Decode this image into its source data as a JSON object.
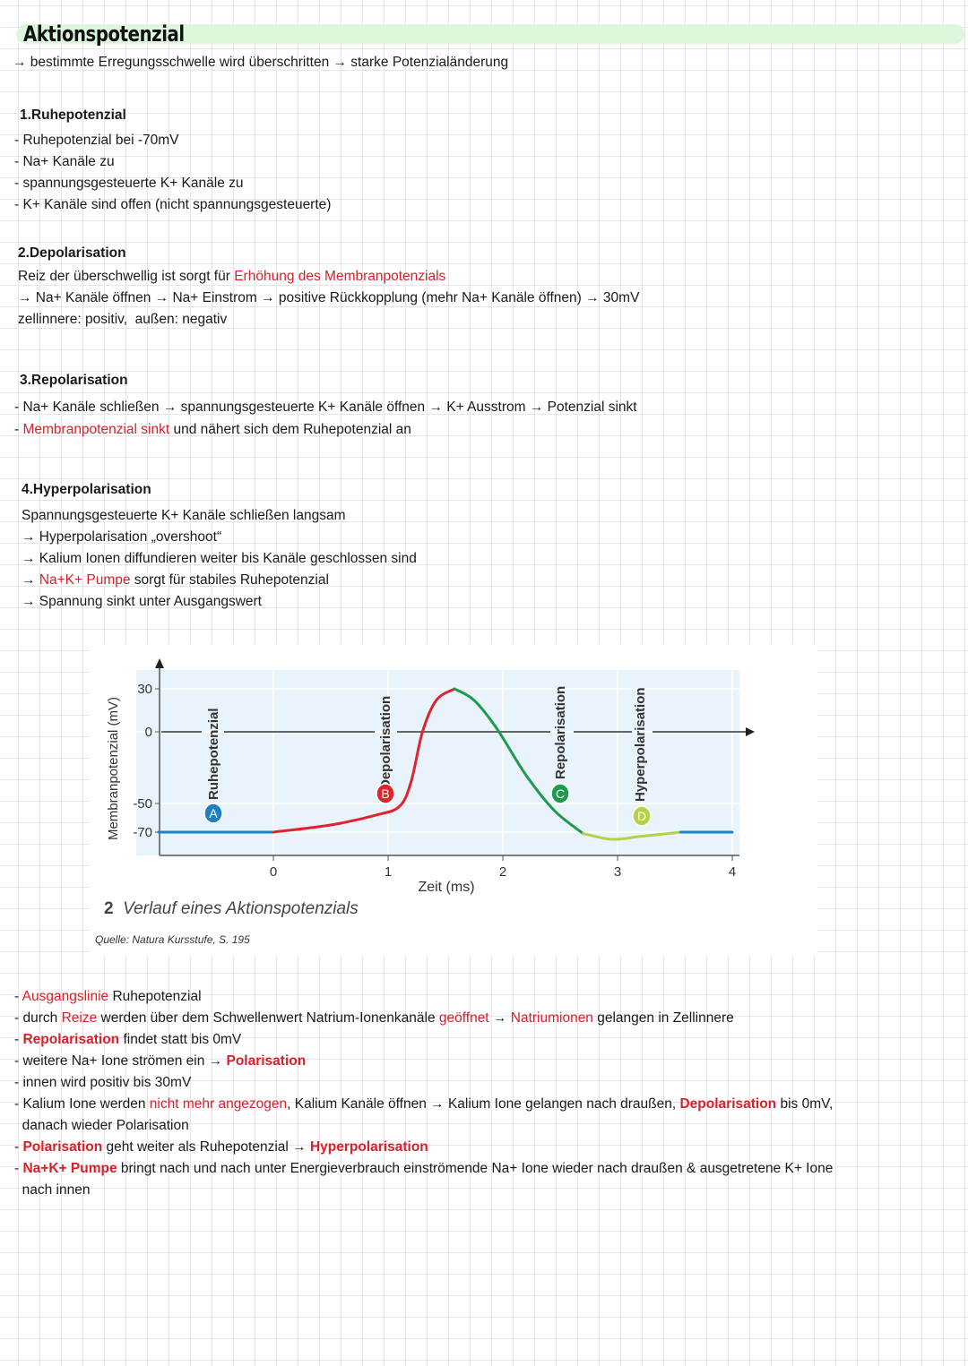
{
  "title": "Aktionspotenzial",
  "intro": [
    {
      "t": "→ bestimmte Erregungsschwelle wird überschritten → starke Potenzialänderung"
    }
  ],
  "sections": [
    {
      "heading": "1.Ruhepotenzial",
      "lines": [
        [
          {
            "t": "- Ruhepotenzial bei -70mV"
          }
        ],
        [
          {
            "t": "- Na+ Kanäle zu"
          }
        ],
        [
          {
            "t": "- spannungsgesteuerte K+ Kanäle zu"
          }
        ],
        [
          {
            "t": "- K+ Kanäle sind offen (nicht spannungsgesteuerte)"
          }
        ]
      ]
    },
    {
      "heading": "2.Depolarisation",
      "lines": [
        [
          {
            "t": "Reiz der überschwellig ist sorgt für "
          },
          {
            "t": "Erhöhung des Membranpotenzials",
            "c": "red"
          }
        ],
        [
          {
            "t": "→ Na+ Kanäle öffnen → Na+ Einstrom → positive Rückkopplung (mehr Na+ Kanäle öffnen) → 30mV"
          }
        ],
        [
          {
            "t": "zellinnere: positiv,  außen: negativ"
          }
        ]
      ]
    },
    {
      "heading": "3.Repolarisation",
      "lines": [
        [
          {
            "t": "- Na+ Kanäle schließen → spannungsgesteuerte K+ Kanäle öffnen → K+ Ausstrom → Potenzial sinkt"
          }
        ],
        [
          {
            "t": "- "
          },
          {
            "t": "Membranpotenzial sinkt",
            "c": "red"
          },
          {
            "t": " und nähert sich dem Ruhepotenzial an"
          }
        ]
      ]
    },
    {
      "heading": "4.Hyperpolarisation",
      "lines": [
        [
          {
            "t": "Spannungsgesteuerte K+ Kanäle schließen langsam"
          }
        ],
        [
          {
            "t": "→ Hyperpolarisation „overshoot“"
          }
        ],
        [
          {
            "t": "→ Kalium Ionen diffundieren weiter bis Kanäle geschlossen sind"
          }
        ],
        [
          {
            "t": "→ "
          },
          {
            "t": "Na+K+ Pumpe",
            "c": "red"
          },
          {
            "t": " sorgt für stabiles Ruhepotenzial"
          }
        ],
        [
          {
            "t": "→ Spannung sinkt unter Ausgangswert"
          }
        ]
      ]
    }
  ],
  "summary": [
    [
      {
        "t": "- "
      },
      {
        "t": "Ausgangslinie",
        "c": "red"
      },
      {
        "t": " Ruhepotenzial"
      }
    ],
    [
      {
        "t": "- durch "
      },
      {
        "t": "Reize",
        "c": "red"
      },
      {
        "t": " werden über dem Schwellenwert Natrium-Ionenkanäle "
      },
      {
        "t": "geöffnet",
        "c": "red"
      },
      {
        "t": " → "
      },
      {
        "t": "Natriumionen",
        "c": "red"
      },
      {
        "t": " gelangen in Zellinnere"
      }
    ],
    [
      {
        "t": "- "
      },
      {
        "t": "Repolarisation",
        "c": "bred"
      },
      {
        "t": " findet statt bis 0mV"
      }
    ],
    [
      {
        "t": "- weitere Na+ Ione strömen ein → "
      },
      {
        "t": "Polarisation",
        "c": "bred"
      }
    ],
    [
      {
        "t": "- innen wird positiv bis 30mV"
      }
    ],
    [
      {
        "t": "- Kalium Ione werden "
      },
      {
        "t": "nicht mehr angezogen",
        "c": "red"
      },
      {
        "t": ", Kalium Kanäle öffnen → Kalium Ione gelangen nach draußen, "
      },
      {
        "t": "Depolarisation",
        "c": "bred"
      },
      {
        "t": " bis 0mV,"
      }
    ],
    [
      {
        "t": "  danach wieder Polarisation"
      }
    ],
    [
      {
        "t": "- "
      },
      {
        "t": "Polarisation",
        "c": "bred"
      },
      {
        "t": " geht weiter als Ruhepotenzial → "
      },
      {
        "t": "Hyperpolarisation",
        "c": "bred"
      }
    ],
    [
      {
        "t": "- "
      },
      {
        "t": "Na+K+ Pumpe",
        "c": "bred"
      },
      {
        "t": " bringt nach und nach unter Energieverbrauch einströmende Na+ Ione wieder nach draußen & ausgetretene K+ Ione"
      }
    ],
    [
      {
        "t": "  nach innen"
      }
    ]
  ],
  "colors": {
    "red": "#d9202a",
    "title_band": "#dcf7dc",
    "rest": "#1f7fc0",
    "depol": "#e0242e",
    "repol": "#1f9a4a",
    "hyper": "#b5d144",
    "plot_bg": "#e8f3fb"
  },
  "chart_data": {
    "type": "line",
    "xlabel": "Zeit (ms)",
    "ylabel": "Membranpotenzial (mV)",
    "xticks": [
      "0",
      "1",
      "2",
      "3",
      "4"
    ],
    "yticks": [
      "30",
      "0",
      "-50",
      "-70"
    ],
    "caption_number": "2",
    "caption": "Verlauf eines Aktionspotenzials",
    "source": "Quelle: Natura Kursstufe, S. 195",
    "series": [
      {
        "phase": "rest",
        "color": "#1f7fc0",
        "points": [
          [
            -1,
            -70
          ],
          [
            0,
            -70
          ]
        ]
      },
      {
        "phase": "depol",
        "color": "#e0242e",
        "points": [
          [
            0,
            -70
          ],
          [
            0.5,
            -65
          ],
          [
            0.9,
            -58
          ],
          [
            1.1,
            -52
          ],
          [
            1.2,
            -35
          ],
          [
            1.3,
            0
          ],
          [
            1.42,
            22
          ],
          [
            1.58,
            30
          ]
        ]
      },
      {
        "phase": "repol",
        "color": "#1f9a4a",
        "points": [
          [
            1.58,
            30
          ],
          [
            1.75,
            22
          ],
          [
            1.95,
            2
          ],
          [
            2.2,
            -30
          ],
          [
            2.45,
            -55
          ],
          [
            2.7,
            -71
          ]
        ]
      },
      {
        "phase": "hyper",
        "color": "#b5d144",
        "points": [
          [
            2.7,
            -71
          ],
          [
            2.95,
            -75
          ],
          [
            3.2,
            -73
          ],
          [
            3.55,
            -70
          ]
        ]
      },
      {
        "phase": "rest",
        "color": "#1f7fc0",
        "points": [
          [
            3.55,
            -70
          ],
          [
            4,
            -70
          ]
        ]
      }
    ],
    "phases": [
      {
        "label": "Ruhepotenzial",
        "marker": "A",
        "color": "#1f7fc0"
      },
      {
        "label": "Depolarisation",
        "marker": "B",
        "color": "#e0242e"
      },
      {
        "label": "Repolarisation",
        "marker": "C",
        "color": "#1f9a4a"
      },
      {
        "label": "Hyperpolarisation",
        "marker": "D",
        "color": "#b5d144"
      }
    ],
    "xlim": [
      -1,
      4
    ],
    "ylim": [
      -85,
      40
    ]
  }
}
